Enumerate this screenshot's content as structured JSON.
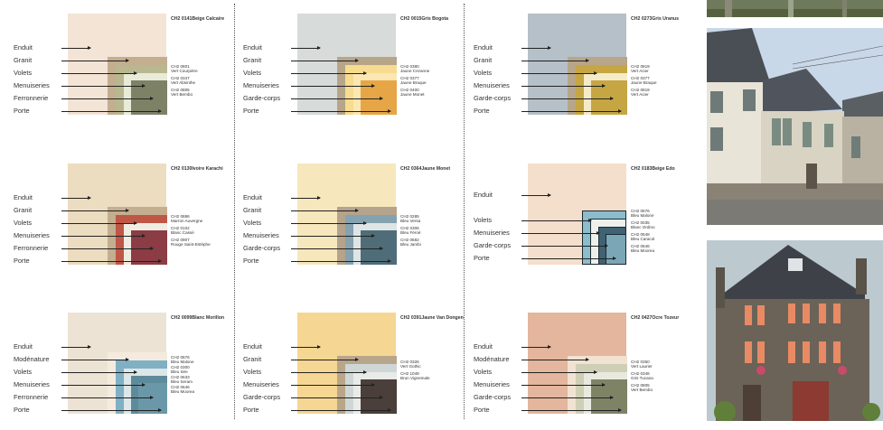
{
  "panels": [
    {
      "base": {
        "code": "CH2 0141",
        "name": "Beige Calcaire",
        "color": "#f3e4d6"
      },
      "labels": [
        "Enduit",
        "Granit",
        "Volets",
        "Menuiseries",
        "Ferronnerie",
        "Porte"
      ],
      "nested": [
        {
          "color": "#c3ae90"
        },
        {
          "color": "#b9b78f",
          "code": "CH2 0801",
          "name": "Vert Courpière"
        },
        {
          "color": "#e9ebd8",
          "code": "CH2 0347",
          "name": "Vert Absinthe"
        },
        {
          "color": "#7d8267",
          "code": "CH2 0805",
          "name": "Vert Bembo"
        }
      ]
    },
    {
      "base": {
        "code": "CH2 0015",
        "name": "Gris Bogota",
        "color": "#d7dbd9"
      },
      "labels": [
        "Enduit",
        "Granit",
        "Volets",
        "Menuiseries",
        "Garde-corps",
        "Porte"
      ],
      "nested": [
        {
          "color": "#b7a58a"
        },
        {
          "color": "#f7dc8f",
          "code": "CH2 0380",
          "name": "Jaune Cezanne"
        },
        {
          "color": "#fbe7b3",
          "code": "CH2 0377",
          "name": "Jaune Braque"
        },
        {
          "color": "#e6a646",
          "code": "CH2 0400",
          "name": "Jaune Monet"
        }
      ]
    },
    {
      "base": {
        "code": "CH2 0273",
        "name": "Gris Uranus",
        "color": "#b6c0c8"
      },
      "labels": [
        "Enduit",
        "Granit",
        "Volets",
        "Menuiseries",
        "Garde-corps",
        "Porte"
      ],
      "nested": [
        {
          "color": "#b8a68a"
        },
        {
          "color": "#c5a642",
          "code": "CH2 0819",
          "name": "Vert Acier"
        },
        {
          "color": "#f4ebc8",
          "code": "CH2 0377",
          "name": "Jaune Braque"
        },
        {
          "color": "#c5a642",
          "code": "CH2 0819",
          "name": "Vert Acier"
        }
      ]
    },
    {
      "base": {
        "code": "CH2 0130",
        "name": "Ivoire Karachi",
        "color": "#ecdcc0"
      },
      "labels": [
        "Enduit",
        "Granit",
        "Volets",
        "Menuiseries",
        "Ferronnerie",
        "Porte"
      ],
      "nested": [
        {
          "color": "#c3ae90"
        },
        {
          "color": "#bf5747",
          "code": "CH2 0886",
          "name": "Marron Auvergne"
        },
        {
          "color": "#f0ece2",
          "code": "CH2 0102",
          "name": "Blanc Cassé"
        },
        {
          "color": "#8c3c44",
          "code": "CH2 0907",
          "name": "Rouge Saint-Estèphe"
        }
      ]
    },
    {
      "base": {
        "code": "CH2 0364",
        "name": "Jaune Monet",
        "color": "#f6e7bd"
      },
      "labels": [
        "Enduit",
        "Granit",
        "Volets",
        "Menuiseries",
        "Garde-corps",
        "Porte"
      ],
      "nested": [
        {
          "color": "#b5a38b"
        },
        {
          "color": "#85a2b0",
          "code": "CH2 0285",
          "name": "Bleu Versa"
        },
        {
          "color": "#dfe4e4",
          "code": "CH2 0306",
          "name": "Bleu Féroé"
        },
        {
          "color": "#4e6d78",
          "code": "CH2 0682",
          "name": "Bleu Jambi"
        }
      ]
    },
    {
      "base": {
        "code": "CH2 0183",
        "name": "Beige Edo",
        "color": "#f4dfcc"
      },
      "labels": [
        "Enduit",
        "Volets",
        "Menuiseries",
        "Garde-corps",
        "Porte"
      ],
      "nested": [
        {
          "color": "#8dbccb",
          "code": "CH2 0676",
          "name": "Bleu Malone"
        },
        {
          "color": "#eef0ec",
          "code": "CH2 0035",
          "name": "Blanc Ordino"
        },
        {
          "color": "#3f6373",
          "code": "CH2 0648",
          "name": "Bleu Caracol"
        },
        {
          "color": "#7aa6b6",
          "code": "CH2 0646",
          "name": "Bleu Moorea"
        }
      ]
    },
    {
      "base": {
        "code": "CH2 0099",
        "name": "Blanc Morillon",
        "color": "#ede3d4"
      },
      "labels": [
        "Enduit",
        "Modénature",
        "Volets",
        "Menuiseries",
        "Ferronnerie",
        "Porte"
      ],
      "nested": [
        {
          "color": "#f4ebde"
        },
        {
          "color": "#7fb0c4",
          "code": "CH2 0676",
          "name": "Bleu Malone"
        },
        {
          "color": "#dde6e8",
          "code": "CH2 0300",
          "name": "Bleu Sée"
        },
        {
          "color": "#5e8b9b",
          "code": "CH2 0633",
          "name": "Bleu Seram"
        },
        {
          "color": "#6b98a8",
          "code": "CH2 0646",
          "name": "Bleu Moorea"
        }
      ]
    },
    {
      "base": {
        "code": "CH2 0391",
        "name": "Jaune Van Dongen",
        "color": "#f5d692"
      },
      "labels": [
        "Enduit",
        "Granit",
        "Volets",
        "Menuiseries",
        "Garde-corps",
        "Porte"
      ],
      "nested": [
        {
          "color": "#b8a68a"
        },
        {
          "color": "#cfd7d6",
          "code": "CH2 0326",
          "name": "Vert Gothic"
        },
        {
          "color": "#e8ebe8"
        },
        {
          "color": "#4a3f3a",
          "code": "CH2 1049",
          "name": "Brun Vignemale"
        }
      ]
    },
    {
      "base": {
        "code": "CH2 0427",
        "name": "Ocre Tozeur",
        "color": "#e3b69d"
      },
      "labels": [
        "Enduit",
        "Modénature",
        "Volets",
        "Menuiseries",
        "Garde-corps",
        "Porte"
      ],
      "nested": [
        {
          "color": "#f1e2d2"
        },
        {
          "color": "#cfcfb5",
          "code": "CH2 0350",
          "name": "Vert Laurier"
        },
        {
          "color": "#e9eadf",
          "code": "CH2 0346",
          "name": "Gris Tucana"
        },
        {
          "color": "#7e8366",
          "code": "CH2 0805",
          "name": "Vert Bembo"
        }
      ]
    }
  ],
  "photos": [
    {
      "subject": "house-photo-strip"
    },
    {
      "subject": "stone-row-houses-photo"
    },
    {
      "subject": "half-timbered-house-photo"
    }
  ]
}
